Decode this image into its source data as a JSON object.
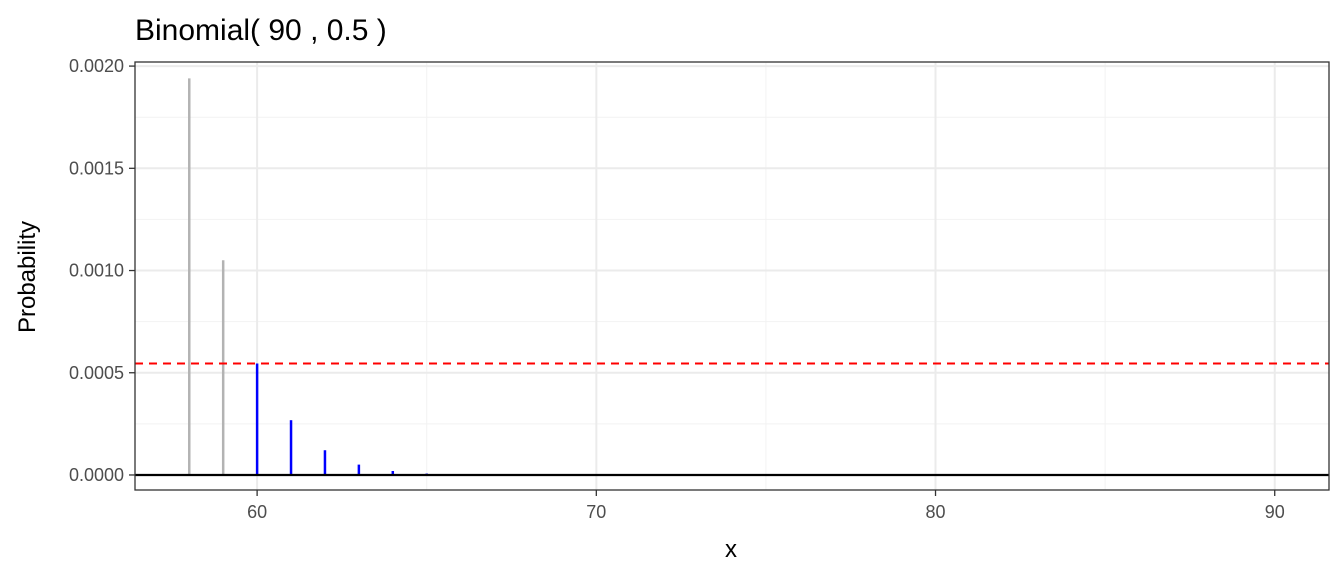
{
  "chart_data": {
    "type": "bar",
    "title": "Binomial( 90 , 0.5 )",
    "xlabel": "x",
    "ylabel": "Probability",
    "xlim": [
      56.4,
      91.6
    ],
    "ylim": [
      -7.35e-05,
      0.00202
    ],
    "x_ticks": [
      60,
      70,
      80,
      90
    ],
    "x_tick_labels": [
      "60",
      "70",
      "80",
      "90"
    ],
    "y_ticks": [
      0,
      0.0005,
      0.001,
      0.0015,
      0.002
    ],
    "y_tick_labels": [
      "0.0000",
      "0.0005",
      "0.0010",
      "0.0015",
      "0.0020"
    ],
    "grid": true,
    "legend": "none",
    "series": [
      {
        "color": "#b3b3b3",
        "x": [
          58,
          59
        ],
        "values": [
          0.00194,
          0.00105
        ]
      },
      {
        "color": "#0000ff",
        "x": [
          60,
          61,
          62,
          63,
          64,
          65
        ],
        "values": [
          0.000545,
          0.000268,
          0.000121,
          5.07e-05,
          1.95e-05,
          6.9e-06
        ]
      }
    ],
    "reference_line": {
      "y": 0.000545,
      "color": "#ff0000",
      "style": "dashed"
    },
    "baseline": {
      "y": 0,
      "color": "#000000"
    }
  }
}
